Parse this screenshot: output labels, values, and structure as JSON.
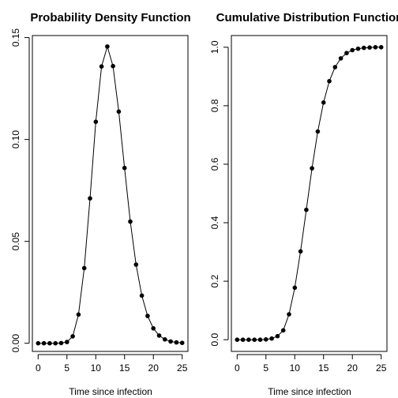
{
  "chart_data": [
    {
      "type": "line",
      "title": "Probability Density Function",
      "xlabel": "Time since infection",
      "ylabel": "",
      "xlim": [
        -1,
        26
      ],
      "ylim": [
        -0.004,
        0.151
      ],
      "x_ticks": [
        0,
        5,
        10,
        15,
        20,
        25
      ],
      "x_tick_labels": [
        "0",
        "5",
        "10",
        "15",
        "20",
        "25"
      ],
      "y_ticks": [
        0.0,
        0.05,
        0.1,
        0.15
      ],
      "y_tick_labels": [
        "0.00",
        "0.05",
        "0.10",
        "0.15"
      ],
      "x": [
        0,
        1,
        2,
        3,
        4,
        5,
        6,
        7,
        8,
        9,
        10,
        11,
        12,
        13,
        14,
        15,
        16,
        17,
        18,
        19,
        20,
        21,
        22,
        23,
        24,
        25
      ],
      "values": [
        0.0,
        0.0,
        0.0,
        0.0,
        0.0001,
        0.0006,
        0.0034,
        0.0141,
        0.0369,
        0.0711,
        0.1087,
        0.1358,
        0.1456,
        0.136,
        0.1137,
        0.086,
        0.0597,
        0.0386,
        0.0234,
        0.0134,
        0.0073,
        0.0038,
        0.0019,
        0.0009,
        0.0004,
        0.0002
      ],
      "grid": false,
      "legend": false
    },
    {
      "type": "line",
      "title": "Cumulative Distribution Function",
      "xlabel": "Time since infection",
      "ylabel": "",
      "xlim": [
        -1,
        26
      ],
      "ylim": [
        -0.04,
        1.04
      ],
      "x_ticks": [
        0,
        5,
        10,
        15,
        20,
        25
      ],
      "x_tick_labels": [
        "0",
        "5",
        "10",
        "15",
        "20",
        "25"
      ],
      "y_ticks": [
        0.0,
        0.2,
        0.4,
        0.6,
        0.8,
        1.0
      ],
      "y_tick_labels": [
        "0.0",
        "0.2",
        "0.4",
        "0.6",
        "0.8",
        "1.0"
      ],
      "x": [
        0,
        1,
        2,
        3,
        4,
        5,
        6,
        7,
        8,
        9,
        10,
        11,
        12,
        13,
        14,
        15,
        16,
        17,
        18,
        19,
        20,
        21,
        22,
        23,
        24,
        25
      ],
      "values": [
        0.0,
        0.0,
        0.0,
        0.0,
        0.0,
        0.001,
        0.004,
        0.012,
        0.032,
        0.087,
        0.178,
        0.302,
        0.444,
        0.586,
        0.712,
        0.811,
        0.884,
        0.932,
        0.962,
        0.98,
        0.99,
        0.995,
        0.998,
        0.999,
        1.0,
        1.0
      ],
      "grid": false,
      "legend": false
    }
  ]
}
